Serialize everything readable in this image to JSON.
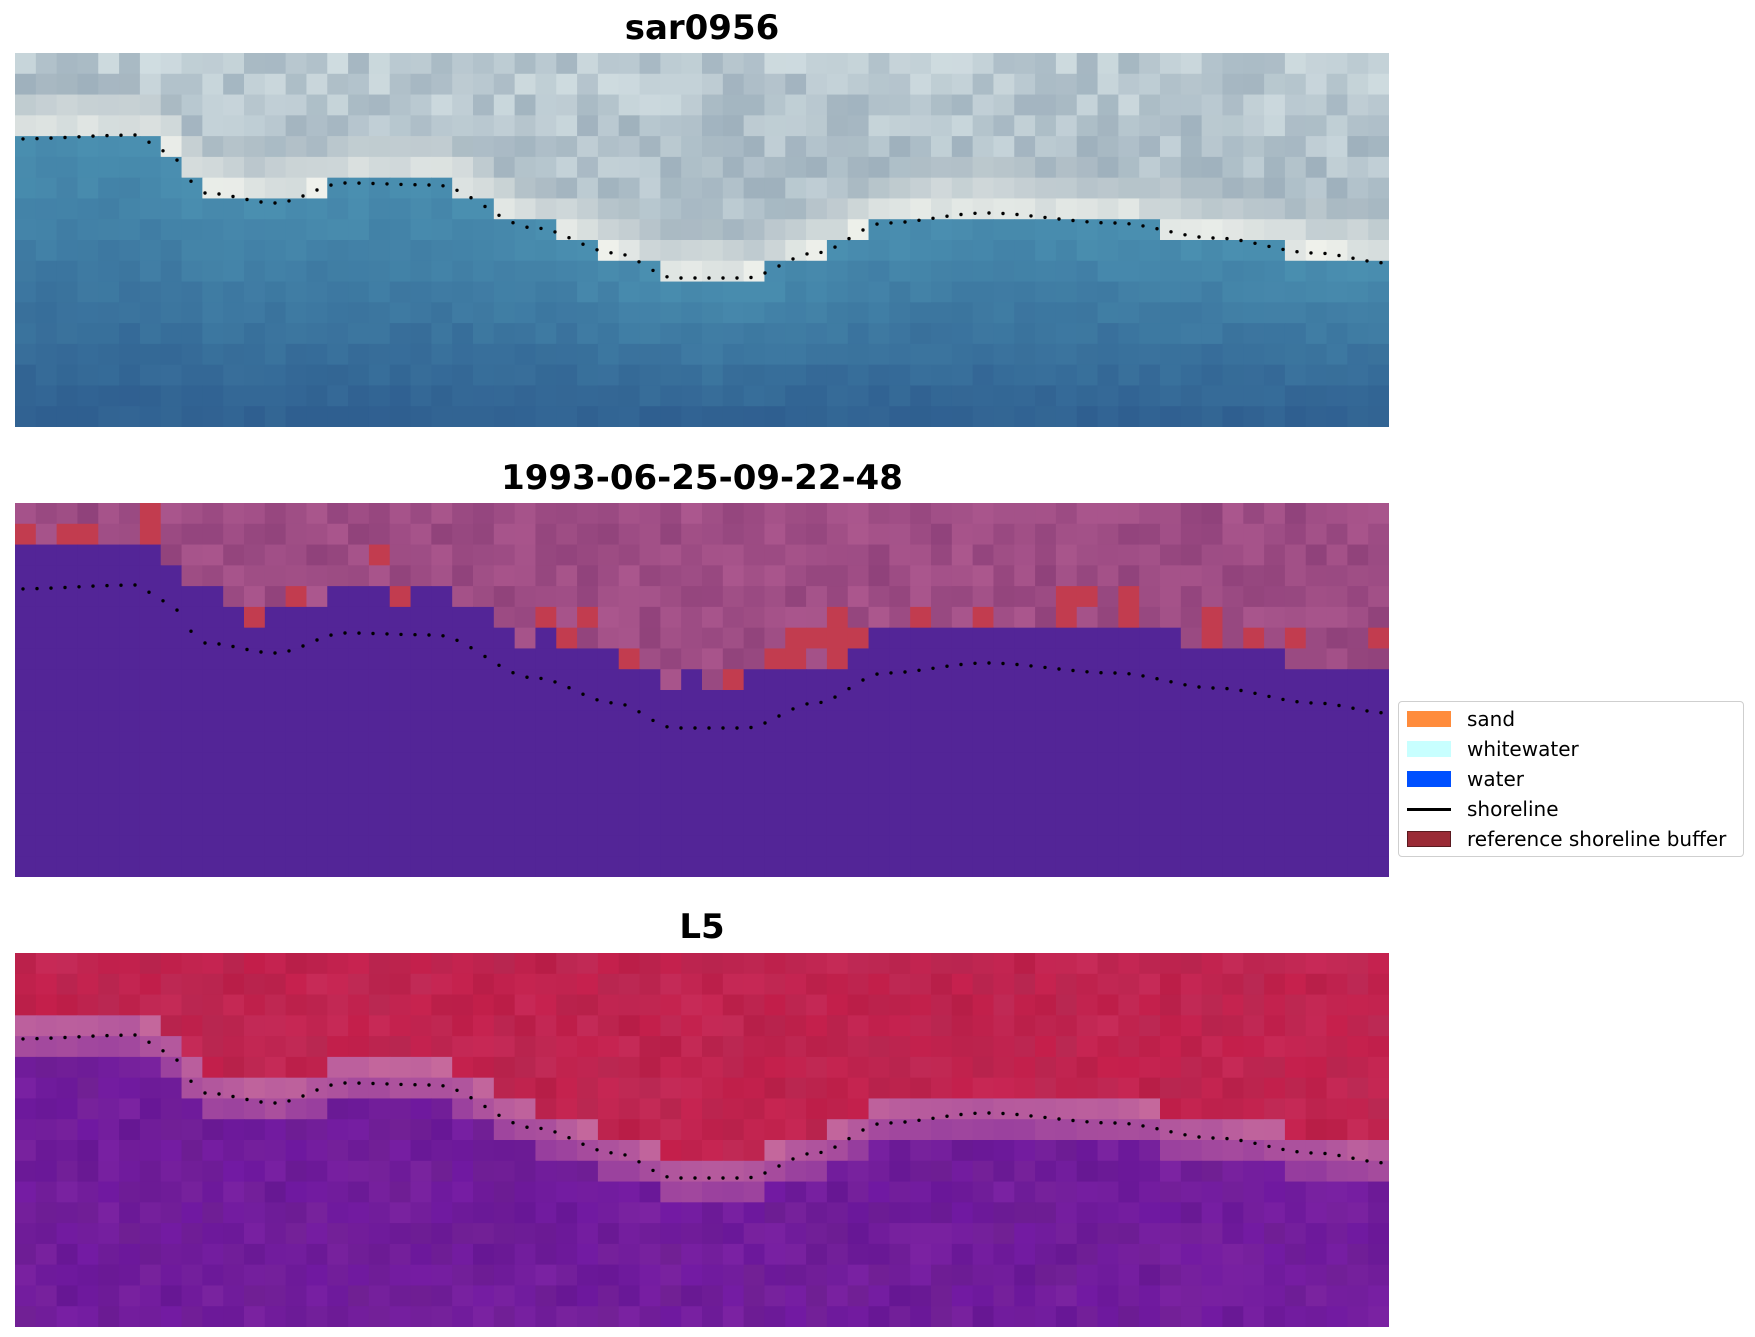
{
  "panels": [
    {
      "title": "sar0956",
      "kind": "rgb"
    },
    {
      "title": "1993-06-25-09-22-48",
      "kind": "classified"
    },
    {
      "title": "L5",
      "kind": "index"
    }
  ],
  "legend": {
    "items": [
      {
        "label": "sand",
        "color": "#ff8c3c",
        "type": "patch"
      },
      {
        "label": "whitewater",
        "color": "#c8ffff",
        "type": "patch"
      },
      {
        "label": "water",
        "color": "#0050ff",
        "type": "patch"
      },
      {
        "label": "shoreline",
        "color": "#000000",
        "type": "line"
      },
      {
        "label": "reference shoreline buffer",
        "color": "#9a2b36",
        "type": "patch"
      }
    ]
  },
  "colors": {
    "rgb_sky_light": "#e8f2f2",
    "rgb_sky_mid": "#9fb1bd",
    "rgb_whitewater": "#f5f6ef",
    "rgb_water_top": "#4a8fb0",
    "rgb_water_deep": "#2f5f90",
    "class_land": "#b35d93",
    "class_land_dark": "#8c3f78",
    "class_water": "#532597",
    "class_buffer": "#c23c4f",
    "index_land": "#c01a45",
    "index_transition": "#c86b9c",
    "index_water": "#6a14a0",
    "shoreline": "#000000"
  }
}
